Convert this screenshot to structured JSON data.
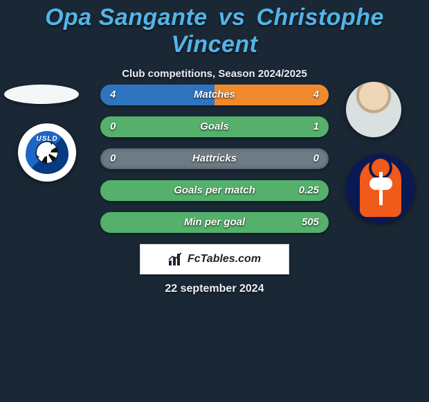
{
  "title": {
    "player1": "Opa Sangante",
    "vs": "vs",
    "player2": "Christophe Vincent",
    "color": "#53b4e8"
  },
  "subtitle": "Club competitions, Season 2024/2025",
  "colors": {
    "background": "#1a2836",
    "bar_track": "#6d7b85",
    "bar_left_fill": "#2f74c0",
    "bar_right_fill": "#f08a2c",
    "bar_full_right": "#54b06a",
    "text": "#ffffff"
  },
  "stats": [
    {
      "label": "Matches",
      "left_value": "4",
      "right_value": "4",
      "left_pct": 50,
      "right_pct": 50,
      "left_fill": "#2f74c0",
      "right_fill": "#f08a2c",
      "track": "#6d7b85"
    },
    {
      "label": "Goals",
      "left_value": "0",
      "right_value": "1",
      "left_pct": 0,
      "right_pct": 100,
      "left_fill": "#2f74c0",
      "right_fill": "#54b06a",
      "track": "#54b06a"
    },
    {
      "label": "Hattricks",
      "left_value": "0",
      "right_value": "0",
      "left_pct": 0,
      "right_pct": 0,
      "left_fill": "#2f74c0",
      "right_fill": "#f08a2c",
      "track": "#6d7b85"
    },
    {
      "label": "Goals per match",
      "left_value": "",
      "right_value": "0.25",
      "left_pct": 0,
      "right_pct": 100,
      "left_fill": "#2f74c0",
      "right_fill": "#54b06a",
      "track": "#54b06a"
    },
    {
      "label": "Min per goal",
      "left_value": "",
      "right_value": "505",
      "left_pct": 0,
      "right_pct": 100,
      "left_fill": "#2f74c0",
      "right_fill": "#54b06a",
      "track": "#54b06a"
    }
  ],
  "brand": {
    "text": "FcTables.com"
  },
  "date": "22 september 2024",
  "clubs": {
    "left_label": "USLD"
  }
}
